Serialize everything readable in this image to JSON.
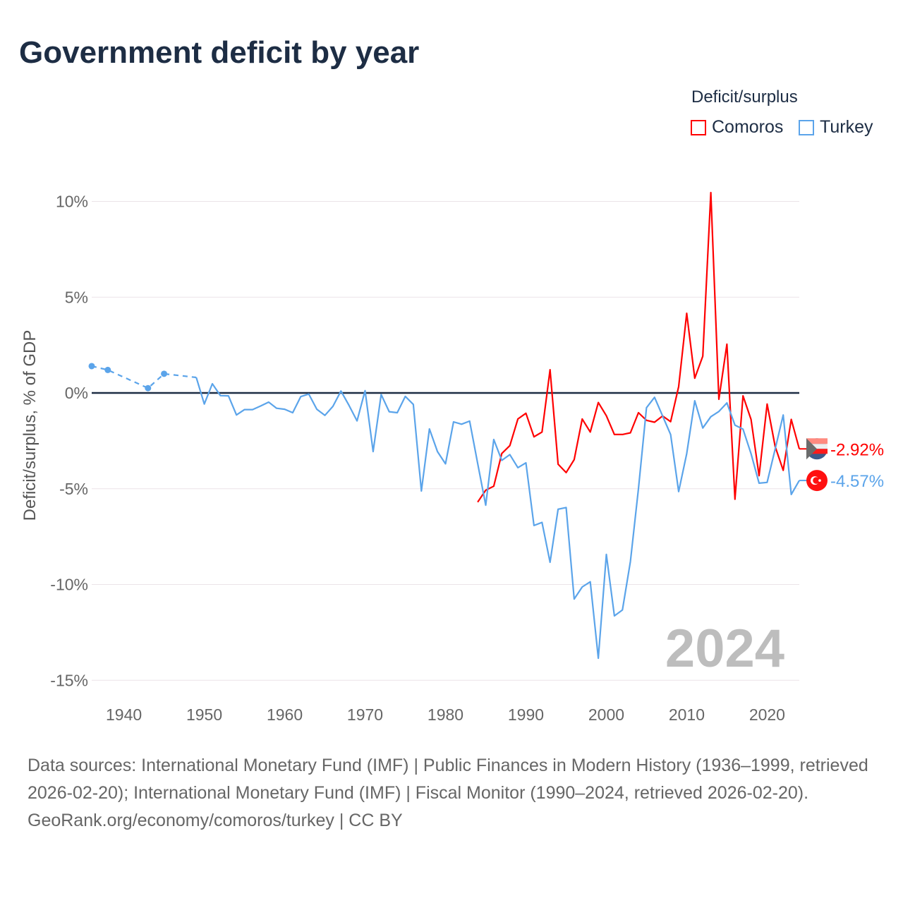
{
  "title": "Government deficit by year",
  "legend": {
    "title": "Deficit/surplus",
    "items": [
      {
        "name": "Comoros",
        "color": "#ff0000"
      },
      {
        "name": "Turkey",
        "color": "#5ba4ea"
      }
    ]
  },
  "footer": {
    "sources": "Data sources: International Monetary Fund (IMF) | Public Finances in Modern History (1936–1999, retrieved 2026-02-20); International Monetary Fund (IMF) | Fiscal Monitor (1990–2024, retrieved 2026-02-20).",
    "credit": "GeoRank.org/economy/comoros/turkey | CC BY"
  },
  "chart_data": {
    "type": "line",
    "title": "Government deficit by year",
    "ylabel": "Deficit/surplus, % of GDP",
    "xlabel": "",
    "xlim": [
      1936,
      2024
    ],
    "ylim": [
      -15,
      10
    ],
    "x_ticks": [
      "1940",
      "1950",
      "1960",
      "1970",
      "1980",
      "1990",
      "2000",
      "2010",
      "2020"
    ],
    "y_ticks": [
      {
        "v": 10,
        "label": "10%"
      },
      {
        "v": 5,
        "label": "5%"
      },
      {
        "v": 0,
        "label": "0%"
      },
      {
        "v": -5,
        "label": "-5%"
      },
      {
        "v": -10,
        "label": "-10%"
      },
      {
        "v": -15,
        "label": "-15%"
      }
    ],
    "current_year": "2024",
    "series": [
      {
        "name": "Comoros",
        "color": "#ff0000",
        "end_label": "-2.92%",
        "x": [
          1984,
          1985,
          1986,
          1987,
          1988,
          1989,
          1990,
          1991,
          1992,
          1993,
          1994,
          1995,
          1996,
          1997,
          1998,
          1999,
          2000,
          2001,
          2002,
          2003,
          2004,
          2005,
          2006,
          2007,
          2008,
          2009,
          2010,
          2011,
          2012,
          2013,
          2014,
          2015,
          2016,
          2017,
          2018,
          2019,
          2020,
          2021,
          2022,
          2023,
          2024
        ],
        "y": [
          -5.7,
          -5.08,
          -4.87,
          -3.16,
          -2.75,
          -1.36,
          -1.06,
          -2.29,
          -2.04,
          1.21,
          -3.72,
          -4.16,
          -3.48,
          -1.36,
          -2.04,
          -0.5,
          -1.19,
          -2.17,
          -2.17,
          -2.08,
          -1.03,
          -1.43,
          -1.53,
          -1.2,
          -1.5,
          0.33,
          4.16,
          0.77,
          1.92,
          10.46,
          -0.33,
          2.55,
          -5.55,
          -0.15,
          -1.38,
          -4.32,
          -0.58,
          -2.8,
          -4.04,
          -1.38,
          -2.92
        ]
      },
      {
        "name": "Turkey",
        "color": "#5ba4ea",
        "end_label": "-4.57%",
        "sparse_x": [
          1936,
          1938,
          1943,
          1945,
          1949
        ],
        "sparse_y": [
          1.4,
          1.2,
          0.25,
          1.0,
          0.81
        ],
        "x": [
          1949,
          1950,
          1951,
          1952,
          1953,
          1954,
          1955,
          1956,
          1957,
          1958,
          1959,
          1960,
          1961,
          1962,
          1963,
          1964,
          1965,
          1966,
          1967,
          1968,
          1969,
          1970,
          1971,
          1972,
          1973,
          1974,
          1975,
          1976,
          1977,
          1978,
          1979,
          1980,
          1981,
          1982,
          1983,
          1984,
          1985,
          1986,
          1987,
          1988,
          1989,
          1990,
          1991,
          1992,
          1993,
          1994,
          1995,
          1996,
          1997,
          1998,
          1999,
          2000,
          2001,
          2002,
          2003,
          2004,
          2005,
          2006,
          2007,
          2008,
          2009,
          2010,
          2011,
          2012,
          2013,
          2014,
          2015,
          2016,
          2017,
          2018,
          2019,
          2020,
          2021,
          2022,
          2023,
          2024
        ],
        "y": [
          0.81,
          -0.58,
          0.48,
          -0.14,
          -0.15,
          -1.15,
          -0.87,
          -0.87,
          -0.68,
          -0.48,
          -0.8,
          -0.85,
          -1.03,
          -0.19,
          -0.06,
          -0.85,
          -1.17,
          -0.7,
          0.1,
          -0.65,
          -1.46,
          0.12,
          -3.06,
          -0.08,
          -0.98,
          -1.03,
          -0.18,
          -0.6,
          -5.12,
          -1.88,
          -3.06,
          -3.7,
          -1.51,
          -1.63,
          -1.47,
          -3.68,
          -5.86,
          -2.43,
          -3.52,
          -3.22,
          -3.9,
          -3.65,
          -6.92,
          -6.76,
          -8.84,
          -6.07,
          -5.98,
          -10.76,
          -10.13,
          -9.86,
          -13.85,
          -8.43,
          -11.64,
          -11.33,
          -8.8,
          -5.0,
          -0.77,
          -0.23,
          -1.2,
          -2.17,
          -5.15,
          -3.17,
          -0.41,
          -1.83,
          -1.24,
          -0.97,
          -0.52,
          -1.68,
          -1.89,
          -3.17,
          -4.71,
          -4.67,
          -2.93,
          -1.15,
          -5.3,
          -4.57
        ]
      }
    ]
  }
}
